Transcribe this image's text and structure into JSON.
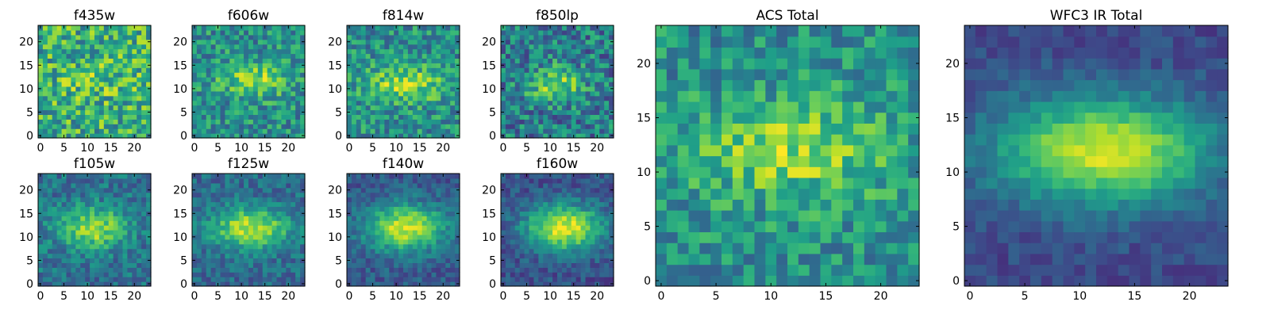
{
  "chart_data": [
    {
      "type": "heatmap",
      "title": "f435w",
      "x_ticks": [
        "0",
        "5",
        "10",
        "15",
        "20"
      ],
      "y_ticks": [
        "0",
        "5",
        "10",
        "15",
        "20"
      ],
      "grid_size": [
        24,
        24
      ],
      "colormap": "viridis",
      "hotspot": {
        "cx": 12,
        "cy": 12,
        "sx": 6,
        "sy": 3
      },
      "signal": 0.1,
      "base": 0.62,
      "noise": 0.28,
      "seed": 11
    },
    {
      "type": "heatmap",
      "title": "f606w",
      "x_ticks": [
        "0",
        "5",
        "10",
        "15",
        "20"
      ],
      "y_ticks": [
        "0",
        "5",
        "10",
        "15",
        "20"
      ],
      "grid_size": [
        24,
        24
      ],
      "colormap": "viridis",
      "hotspot": {
        "cx": 13,
        "cy": 12,
        "sx": 5,
        "sy": 2.5
      },
      "signal": 0.35,
      "base": 0.5,
      "noise": 0.22,
      "seed": 23
    },
    {
      "type": "heatmap",
      "title": "f814w",
      "x_ticks": [
        "0",
        "5",
        "10",
        "15",
        "20"
      ],
      "y_ticks": [
        "0",
        "5",
        "10",
        "15",
        "20"
      ],
      "grid_size": [
        24,
        24
      ],
      "colormap": "viridis",
      "hotspot": {
        "cx": 12,
        "cy": 11,
        "sx": 6,
        "sy": 2.5
      },
      "signal": 0.35,
      "base": 0.5,
      "noise": 0.22,
      "seed": 37
    },
    {
      "type": "heatmap",
      "title": "f850lp",
      "x_ticks": [
        "0",
        "5",
        "10",
        "15",
        "20"
      ],
      "y_ticks": [
        "0",
        "5",
        "10",
        "15",
        "20"
      ],
      "grid_size": [
        24,
        24
      ],
      "colormap": "viridis",
      "hotspot": {
        "cx": 11,
        "cy": 11,
        "sx": 4,
        "sy": 2.5
      },
      "signal": 0.4,
      "base": 0.42,
      "noise": 0.25,
      "seed": 41
    },
    {
      "type": "heatmap",
      "title": "f105w",
      "x_ticks": [
        "0",
        "5",
        "10",
        "15",
        "20"
      ],
      "y_ticks": [
        "0",
        "5",
        "10",
        "15",
        "20"
      ],
      "grid_size": [
        24,
        24
      ],
      "colormap": "viridis",
      "hotspot": {
        "cx": 11,
        "cy": 12,
        "sx": 5,
        "sy": 3
      },
      "signal": 0.5,
      "base": 0.38,
      "noise": 0.16,
      "seed": 53
    },
    {
      "type": "heatmap",
      "title": "f125w",
      "x_ticks": [
        "0",
        "5",
        "10",
        "15",
        "20"
      ],
      "y_ticks": [
        "0",
        "5",
        "10",
        "15",
        "20"
      ],
      "grid_size": [
        24,
        24
      ],
      "colormap": "viridis",
      "hotspot": {
        "cx": 12,
        "cy": 12,
        "sx": 6,
        "sy": 3
      },
      "signal": 0.55,
      "base": 0.35,
      "noise": 0.14,
      "seed": 67
    },
    {
      "type": "heatmap",
      "title": "f140w",
      "x_ticks": [
        "0",
        "5",
        "10",
        "15",
        "20"
      ],
      "y_ticks": [
        "0",
        "5",
        "10",
        "15",
        "20"
      ],
      "grid_size": [
        24,
        24
      ],
      "colormap": "viridis",
      "hotspot": {
        "cx": 12,
        "cy": 12,
        "sx": 6,
        "sy": 3.5
      },
      "signal": 0.65,
      "base": 0.28,
      "noise": 0.12,
      "seed": 71
    },
    {
      "type": "heatmap",
      "title": "f160w",
      "x_ticks": [
        "0",
        "5",
        "10",
        "15",
        "20"
      ],
      "y_ticks": [
        "0",
        "5",
        "10",
        "15",
        "20"
      ],
      "grid_size": [
        24,
        24
      ],
      "colormap": "viridis",
      "hotspot": {
        "cx": 13,
        "cy": 12,
        "sx": 6,
        "sy": 3.5
      },
      "signal": 0.7,
      "base": 0.25,
      "noise": 0.12,
      "seed": 83
    },
    {
      "type": "heatmap",
      "title": "ACS Total",
      "x_ticks": [
        "0",
        "5",
        "10",
        "15",
        "20"
      ],
      "y_ticks": [
        "0",
        "5",
        "10",
        "15",
        "20"
      ],
      "grid_size": [
        24,
        24
      ],
      "colormap": "viridis",
      "hotspot": {
        "cx": 12,
        "cy": 12,
        "sx": 6,
        "sy": 3
      },
      "signal": 0.35,
      "base": 0.5,
      "noise": 0.2,
      "seed": 97
    },
    {
      "type": "heatmap",
      "title": "WFC3 IR Total",
      "x_ticks": [
        "0",
        "5",
        "10",
        "15",
        "20"
      ],
      "y_ticks": [
        "0",
        "5",
        "10",
        "15",
        "20"
      ],
      "grid_size": [
        24,
        24
      ],
      "colormap": "viridis",
      "hotspot": {
        "cx": 12,
        "cy": 12,
        "sx": 7,
        "sy": 3.5
      },
      "signal": 0.72,
      "base": 0.22,
      "noise": 0.08,
      "seed": 101
    }
  ],
  "colors": {
    "viridis": [
      "#440154",
      "#482878",
      "#3e4989",
      "#31688e",
      "#26828e",
      "#1f9e89",
      "#35b779",
      "#6ece58",
      "#b5de2b",
      "#fde725"
    ],
    "frame": "#000000",
    "background": "#ffffff"
  }
}
